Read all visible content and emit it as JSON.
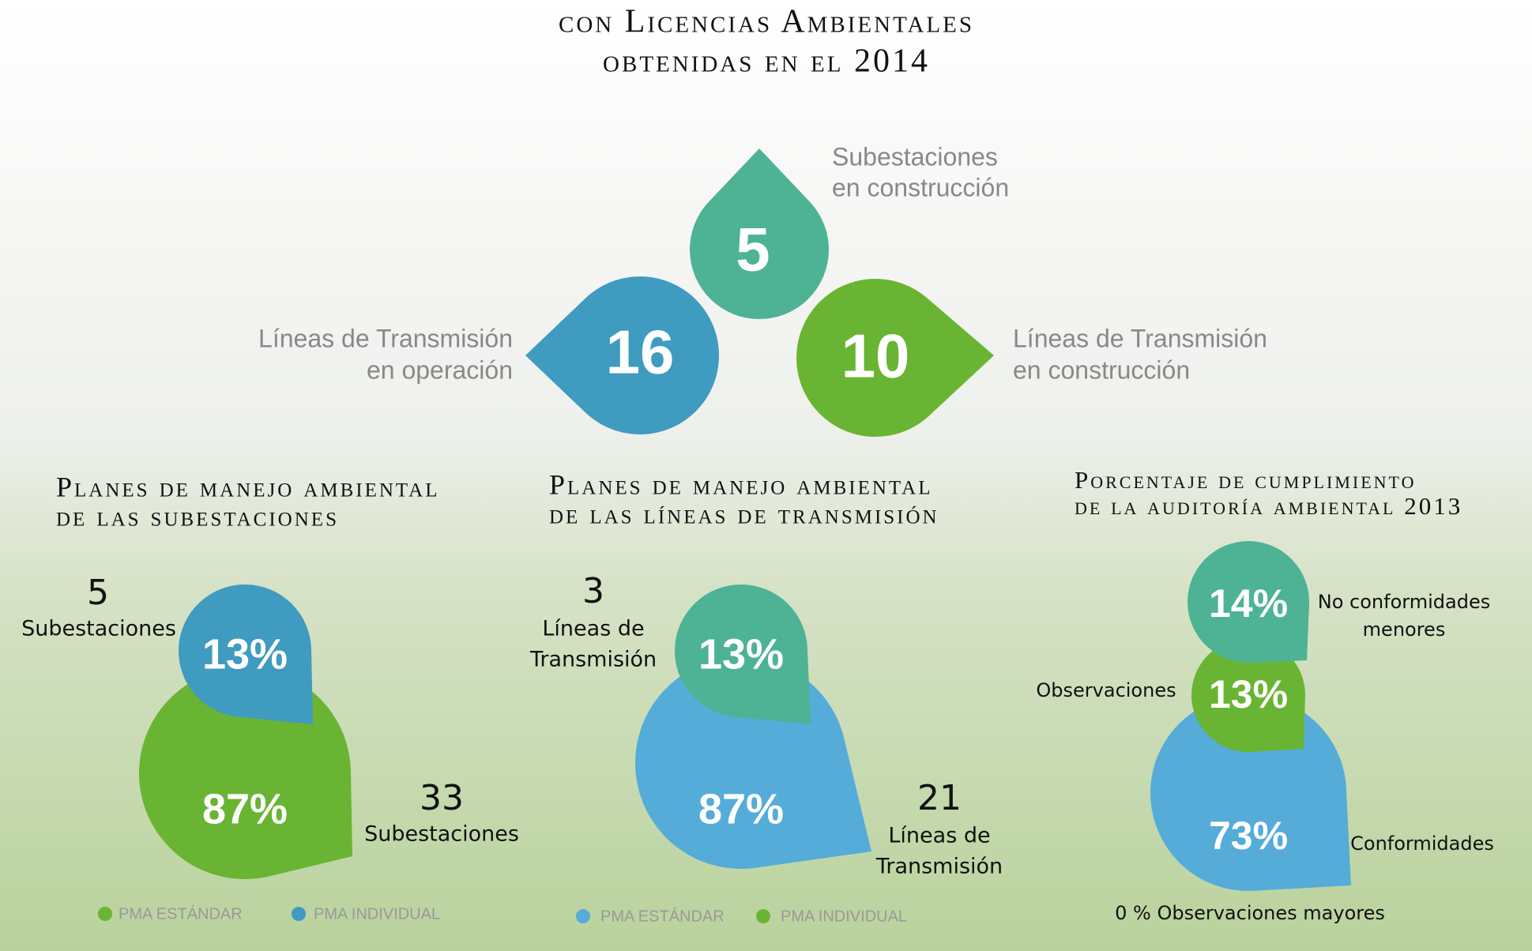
{
  "header": {
    "title": [
      "con Licencias Ambientales",
      "obtenidas en el 2014"
    ]
  },
  "top": [
    {
      "value": "5",
      "label": [
        "Subestaciones",
        "en construcción"
      ]
    },
    {
      "value": "16",
      "label": [
        "Líneas de Transmisión",
        "en operación"
      ]
    },
    {
      "value": "10",
      "label": [
        "Líneas de Transmisión",
        "en construcción"
      ]
    }
  ],
  "panels": [
    {
      "title": [
        "Planes de manejo ambiental",
        "de las subestaciones"
      ],
      "small": {
        "count": "5",
        "label": [
          "Subestaciones"
        ],
        "percent": "13%"
      },
      "big": {
        "count": "33",
        "label": [
          "Subestaciones"
        ],
        "percent": "87%"
      },
      "legend": [
        "PMA ESTÁNDAR",
        "PMA INDIVIDUAL"
      ]
    },
    {
      "title": [
        "Planes de manejo ambiental",
        "de las líneas de transmisión"
      ],
      "small": {
        "count": "3",
        "label": [
          "Líneas de",
          "Transmisión"
        ],
        "percent": "13%"
      },
      "big": {
        "count": "21",
        "label": [
          "Líneas de",
          "Transmisión"
        ],
        "percent": "87%"
      },
      "legend": [
        "PMA ESTÁNDAR",
        "PMA INDIVIDUAL"
      ]
    },
    {
      "title": [
        "Porcentaje de cumplimiento",
        "de la auditoría ambiental 2013"
      ],
      "items": [
        {
          "percent": "14%",
          "label": [
            "No conformidades",
            "menores"
          ]
        },
        {
          "percent": "13%",
          "label": [
            "Observaciones"
          ]
        },
        {
          "percent": "73%",
          "label": [
            "Conformidades"
          ]
        }
      ],
      "note": "0 % Observaciones mayores"
    }
  ]
}
